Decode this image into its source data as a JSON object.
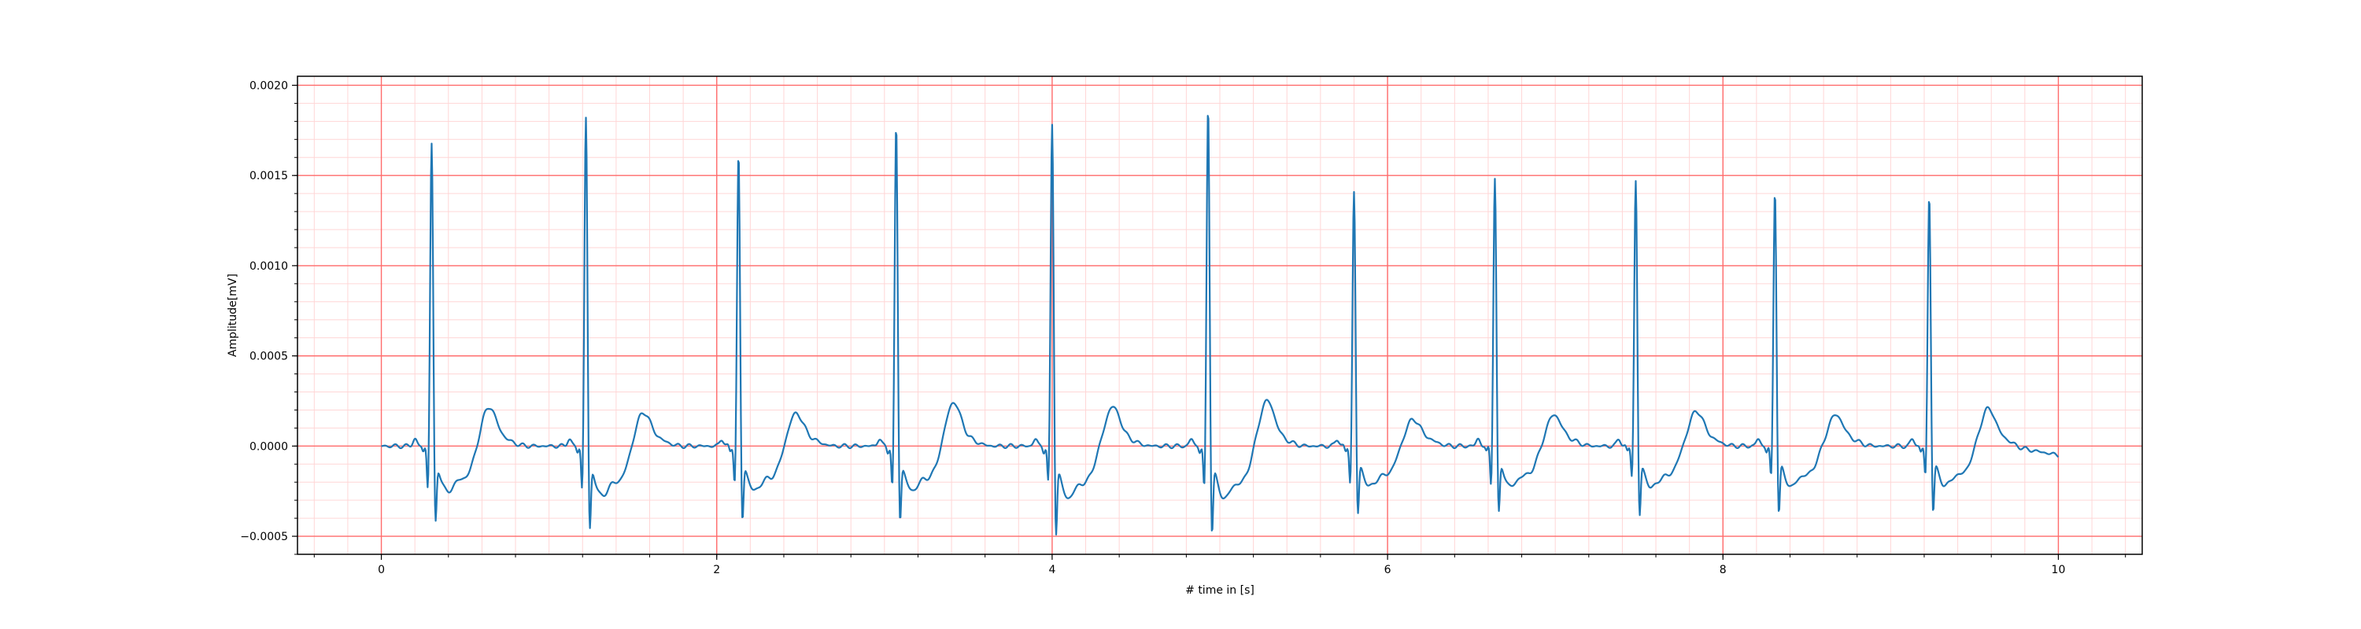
{
  "chart_data": {
    "type": "line",
    "title": "",
    "xlabel": "# time in [s]",
    "ylabel": "Amplitude[mV]",
    "xlim": [
      -0.5,
      10.5
    ],
    "ylim": [
      -0.0006,
      0.00205
    ],
    "x_ticks": [
      0,
      2,
      4,
      6,
      8,
      10
    ],
    "x_tick_labels": [
      "0",
      "2",
      "4",
      "6",
      "8",
      "10"
    ],
    "y_ticks": [
      -0.0005,
      0.0,
      0.0005,
      0.001,
      0.0015,
      0.002
    ],
    "y_tick_labels": [
      "−0.0005",
      "0.0000",
      "0.0005",
      "0.0010",
      "0.0015",
      "0.0020"
    ],
    "grid": {
      "major": true,
      "minor": true,
      "major_color": "#ff6b6b",
      "minor_color": "#ffd6d6"
    },
    "line_color": "#1f77b4",
    "baseline": [
      [
        0,
        0.0
      ],
      [
        0.1,
        5e-06
      ],
      [
        0.15,
        0.0
      ],
      [
        0.2,
        4e-05
      ],
      [
        0.25,
        1e-05
      ],
      [
        10.0,
        -5e-05
      ]
    ],
    "beats": [
      {
        "r_time": 0.3,
        "r_amp": 0.00171,
        "q_amp": -0.00026,
        "s_amp": -0.00043,
        "t_time": 0.64,
        "t_amp": 0.000155
      },
      {
        "r_time": 1.22,
        "r_amp": 0.00186,
        "q_amp": -0.00027,
        "s_amp": -0.00047,
        "t_time": 1.56,
        "t_amp": 0.000125
      },
      {
        "r_time": 2.13,
        "r_amp": 0.00165,
        "q_amp": -0.00023,
        "s_amp": -0.00042,
        "t_time": 2.47,
        "t_amp": 0.00012
      },
      {
        "r_time": 3.07,
        "r_amp": 0.00181,
        "q_amp": -0.00026,
        "s_amp": -0.00042,
        "t_time": 3.41,
        "t_amp": 0.00018
      },
      {
        "r_time": 4.0,
        "r_amp": 0.00182,
        "q_amp": -0.00023,
        "s_amp": -0.00049,
        "t_time": 4.36,
        "t_amp": 0.000155
      },
      {
        "r_time": 4.93,
        "r_amp": 0.00192,
        "q_amp": -0.00027,
        "s_amp": -0.00049,
        "t_time": 5.28,
        "t_amp": 0.00019
      },
      {
        "r_time": 5.8,
        "r_amp": 0.00144,
        "q_amp": -0.00023,
        "s_amp": -0.00038,
        "t_time": 6.15,
        "t_amp": 8.5e-05
      },
      {
        "r_time": 6.64,
        "r_amp": 0.00152,
        "q_amp": -0.00024,
        "s_amp": -0.00038,
        "t_time": 6.99,
        "t_amp": 0.00011
      },
      {
        "r_time": 7.48,
        "r_amp": 0.0015,
        "q_amp": -0.00019,
        "s_amp": -0.00039,
        "t_time": 7.84,
        "t_amp": 0.00013
      },
      {
        "r_time": 8.31,
        "r_amp": 0.00145,
        "q_amp": -0.0002,
        "s_amp": -0.00038,
        "t_time": 8.67,
        "t_amp": 0.00011
      },
      {
        "r_time": 9.23,
        "r_amp": 0.00142,
        "q_amp": -0.00019,
        "s_amp": -0.00037,
        "t_time": 9.58,
        "t_amp": 0.000145
      }
    ]
  }
}
